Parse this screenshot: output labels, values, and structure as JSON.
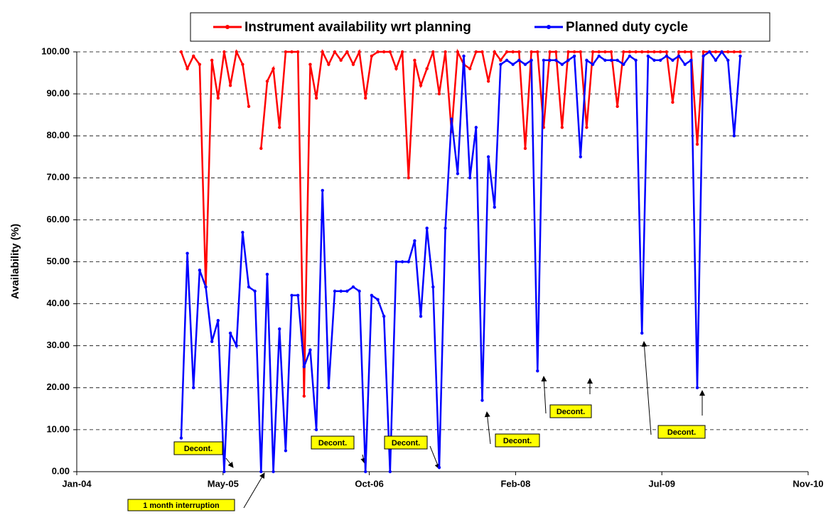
{
  "chart_data": {
    "type": "line",
    "y_label": "Availability (%)",
    "x": [
      38357,
      38378,
      38399,
      38420,
      38441,
      38462,
      38483,
      38504,
      38525,
      38546,
      38567,
      38588,
      38609,
      38630,
      38651,
      38672,
      38693,
      38714,
      38735,
      38756,
      38777,
      38798,
      38819,
      38840,
      38861,
      38882,
      38903,
      38924,
      38945,
      38966,
      38987,
      39008,
      39029,
      39050,
      39071,
      39092,
      39113,
      39134,
      39155,
      39176,
      39197,
      39218,
      39239,
      39260,
      39281,
      39302,
      39323,
      39344,
      39365,
      39386,
      39407,
      39428,
      39449,
      39470,
      39491,
      39512,
      39533,
      39554,
      39575,
      39596,
      39617,
      39638,
      39659,
      39680,
      39701,
      39722,
      39743,
      39764,
      39785,
      39806,
      39827,
      39848,
      39869,
      39890,
      39911,
      39932,
      39953,
      39974,
      39995,
      40016,
      40037,
      40058,
      40079,
      40100,
      40121,
      40142,
      40163,
      40184,
      40205,
      40226,
      40247,
      40268
    ],
    "series": [
      {
        "name": "Instrument availability wrt planning",
        "color": "#ff0000",
        "values": [
          100,
          96,
          99,
          97,
          44,
          98,
          89,
          100,
          92,
          100,
          97,
          87,
          null,
          77,
          93,
          96,
          82,
          100,
          100,
          100,
          18,
          97,
          89,
          100,
          97,
          100,
          98,
          100,
          97,
          100,
          89,
          99,
          100,
          100,
          100,
          96,
          100,
          70,
          98,
          92,
          96,
          100,
          90,
          100,
          81,
          100,
          97,
          96,
          100,
          100,
          93,
          100,
          98,
          100,
          100,
          100,
          77,
          100,
          100,
          82,
          100,
          100,
          82,
          100,
          100,
          100,
          82,
          100,
          100,
          100,
          100,
          87,
          100,
          100,
          100,
          100,
          100,
          100,
          100,
          100,
          88,
          100,
          100,
          100,
          78,
          100,
          100,
          100,
          100,
          100,
          100,
          100
        ]
      },
      {
        "name": "Planned duty cycle",
        "color": "#0000ff",
        "values": [
          8,
          52,
          20,
          48,
          44,
          31,
          36,
          0,
          33,
          30,
          57,
          44,
          43,
          0,
          47,
          0,
          34,
          5,
          42,
          42,
          25,
          29,
          10,
          67,
          20,
          43,
          43,
          43,
          44,
          43,
          0,
          42,
          41,
          37,
          0,
          50,
          50,
          50,
          55,
          37,
          58,
          44,
          1,
          58,
          84,
          71,
          99,
          70,
          82,
          17,
          75,
          63,
          97,
          98,
          97,
          98,
          97,
          98,
          24,
          98,
          98,
          98,
          97,
          98,
          99,
          75,
          98,
          97,
          99,
          98,
          98,
          98,
          97,
          99,
          98,
          33,
          99,
          98,
          98,
          99,
          98,
          99,
          97,
          98,
          20,
          99,
          100,
          98,
          100,
          98,
          80,
          99
        ]
      }
    ],
    "xlim": [
      38000,
      40500
    ],
    "xticks": [
      {
        "value": 38000,
        "label": "Jan-04"
      },
      {
        "value": 38500,
        "label": "May-05"
      },
      {
        "value": 39000,
        "label": "Oct-06"
      },
      {
        "value": 39500,
        "label": "Feb-08"
      },
      {
        "value": 40000,
        "label": "Jul-09"
      },
      {
        "value": 40500,
        "label": "Nov-10"
      }
    ],
    "ylim": [
      0,
      100
    ],
    "yticks": [
      {
        "value": 0,
        "label": "0.00"
      },
      {
        "value": 10,
        "label": "10.00"
      },
      {
        "value": 20,
        "label": "20.00"
      },
      {
        "value": 30,
        "label": "30.00"
      },
      {
        "value": 40,
        "label": "40.00"
      },
      {
        "value": 50,
        "label": "50.00"
      },
      {
        "value": 60,
        "label": "60.00"
      },
      {
        "value": 70,
        "label": "70.00"
      },
      {
        "value": 80,
        "label": "80.00"
      },
      {
        "value": 90,
        "label": "90.00"
      },
      {
        "value": 100,
        "label": "100.00"
      }
    ],
    "grid": true,
    "legend": "top",
    "annotations": [
      "Decont.",
      "1 month interruption",
      "Decont.",
      "Decont.",
      "Decont.",
      "Decont.",
      "Decont."
    ]
  }
}
